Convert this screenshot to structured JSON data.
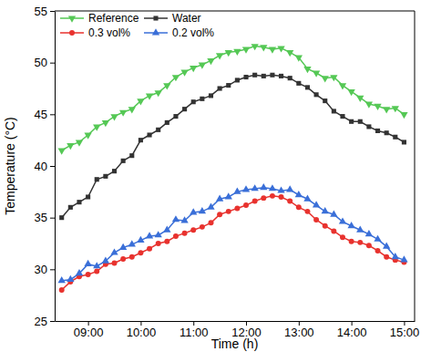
{
  "chart_data": {
    "type": "line",
    "x_label": "Time (h)",
    "y_label": "Temperature (°C)",
    "x": [
      510,
      520,
      530,
      540,
      550,
      560,
      570,
      580,
      590,
      600,
      610,
      620,
      630,
      640,
      650,
      660,
      670,
      680,
      690,
      700,
      710,
      720,
      730,
      740,
      750,
      760,
      770,
      780,
      790,
      800,
      810,
      820,
      830,
      840,
      850,
      860,
      870,
      880,
      890,
      900
    ],
    "xlim": [
      502,
      912
    ],
    "xticks": [
      {
        "value": 540,
        "label": "09:00"
      },
      {
        "value": 600,
        "label": "10:00"
      },
      {
        "value": 660,
        "label": "11:00"
      },
      {
        "value": 720,
        "label": "12:00"
      },
      {
        "value": 780,
        "label": "13:00"
      },
      {
        "value": 840,
        "label": "14:00"
      },
      {
        "value": 900,
        "label": "15:00"
      }
    ],
    "ylim": [
      25,
      55
    ],
    "yticks": [
      25,
      30,
      35,
      40,
      45,
      50,
      55
    ],
    "grid": false,
    "legend": "upper left",
    "series": [
      {
        "name": "Reference",
        "color": "#55c855",
        "marker": "triangle-down",
        "values": [
          41.5,
          42,
          42.3,
          43,
          43.8,
          44.2,
          44.8,
          45.2,
          45.5,
          46.3,
          46.8,
          47.1,
          47.8,
          48.6,
          49.1,
          49.5,
          49.8,
          50.2,
          50.7,
          51,
          51.1,
          51.3,
          51.6,
          51.5,
          51.3,
          51.4,
          51,
          50.5,
          49.4,
          49,
          48.5,
          48.6,
          47.8,
          47.2,
          46.6,
          46,
          45.8,
          45.5,
          45.6,
          45
        ]
      },
      {
        "name": "Water",
        "color": "#333333",
        "marker": "square",
        "values": [
          35,
          36,
          36.5,
          37,
          38.7,
          39,
          39.5,
          40.5,
          41,
          42.5,
          43,
          43.5,
          44.2,
          44.8,
          45.5,
          46.2,
          46.5,
          46.8,
          47.5,
          47.8,
          48.3,
          48.6,
          48.8,
          48.7,
          48.8,
          48.7,
          48.5,
          48,
          47.6,
          46.9,
          46.3,
          45.3,
          44.8,
          44.3,
          44.3,
          43.8,
          43.4,
          43.2,
          42.8,
          42.3
        ]
      },
      {
        "name": "0.3 vol%",
        "color": "#e8322e",
        "marker": "circle",
        "values": [
          28,
          28.8,
          29.3,
          29.5,
          29.8,
          30.5,
          30.6,
          31,
          31.2,
          31.6,
          32,
          32.5,
          32.7,
          33.2,
          33.5,
          33.8,
          34.1,
          34.5,
          35.3,
          35.6,
          35.9,
          36.2,
          36.6,
          36.9,
          37.1,
          37,
          36.6,
          36,
          35.6,
          34.8,
          34.2,
          33.7,
          33.1,
          32.7,
          32.6,
          32.3,
          31.8,
          31.2,
          30.9,
          30.7
        ]
      },
      {
        "name": "0.2 vol%",
        "color": "#3a6fd8",
        "marker": "triangle-up",
        "values": [
          28.9,
          29,
          29.6,
          30.5,
          30.3,
          30.8,
          31.6,
          32.1,
          32.4,
          32.8,
          33.2,
          33.3,
          33.8,
          34.8,
          34.7,
          35.5,
          35.6,
          36,
          36.8,
          37,
          37.5,
          37.7,
          37.8,
          37.9,
          37.8,
          37.6,
          37.7,
          37.2,
          36.8,
          36.2,
          35.6,
          35.3,
          34.6,
          34.2,
          33.8,
          33.4,
          32.9,
          32.2,
          31.2,
          30.9
        ]
      }
    ]
  }
}
